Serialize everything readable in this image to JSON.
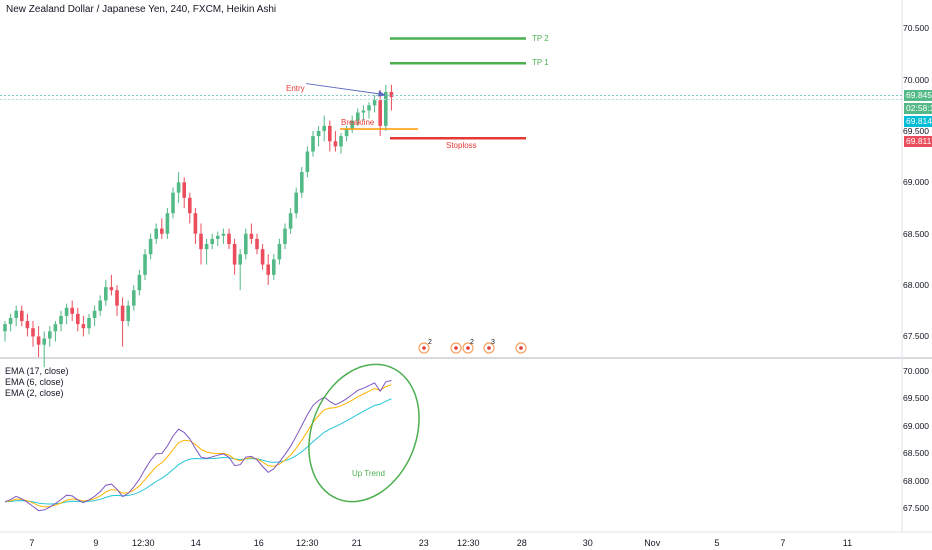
{
  "chart_data": [
    {
      "type": "candlestick",
      "title": "New Zealand Dollar / Japanese Yen, 240, FXCM, Heikin Ashi",
      "y_ticks": [
        "70.500",
        "70.000",
        "69.500",
        "69.000",
        "68.500",
        "68.000",
        "67.500"
      ],
      "ylim": [
        67.3,
        70.6
      ],
      "x_tick_labels": [
        "7",
        "9",
        "12:30",
        "14",
        "16",
        "12:30",
        "21",
        "23",
        "12:30",
        "28",
        "30",
        "Nov",
        "5",
        "7",
        "11"
      ],
      "bull_color": "#53b987",
      "bear_color": "#eb4d5c",
      "candles": [
        [
          67.55,
          67.65,
          67.45,
          67.62
        ],
        [
          67.62,
          67.72,
          67.55,
          67.68
        ],
        [
          67.68,
          67.8,
          67.6,
          67.75
        ],
        [
          67.75,
          67.8,
          67.6,
          67.65
        ],
        [
          67.65,
          67.72,
          67.5,
          67.58
        ],
        [
          67.58,
          67.65,
          67.4,
          67.5
        ],
        [
          67.5,
          67.6,
          67.3,
          67.42
        ],
        [
          67.42,
          67.55,
          67.2,
          67.48
        ],
        [
          67.48,
          67.6,
          67.4,
          67.55
        ],
        [
          67.55,
          67.65,
          67.45,
          67.62
        ],
        [
          67.62,
          67.75,
          67.55,
          67.7
        ],
        [
          67.7,
          67.82,
          67.62,
          67.78
        ],
        [
          67.78,
          67.85,
          67.65,
          67.72
        ],
        [
          67.72,
          67.78,
          67.55,
          67.62
        ],
        [
          67.62,
          67.7,
          67.5,
          67.58
        ],
        [
          67.58,
          67.72,
          67.52,
          67.68
        ],
        [
          67.68,
          67.8,
          67.6,
          67.75
        ],
        [
          67.75,
          67.9,
          67.7,
          67.85
        ],
        [
          67.85,
          68.05,
          67.8,
          67.98
        ],
        [
          67.98,
          68.1,
          67.9,
          67.95
        ],
        [
          67.95,
          68.0,
          67.7,
          67.8
        ],
        [
          67.8,
          67.88,
          67.4,
          67.65
        ],
        [
          67.65,
          67.85,
          67.6,
          67.8
        ],
        [
          67.8,
          68.0,
          67.75,
          67.95
        ],
        [
          67.95,
          68.15,
          67.9,
          68.1
        ],
        [
          68.1,
          68.35,
          68.05,
          68.3
        ],
        [
          68.3,
          68.5,
          68.25,
          68.45
        ],
        [
          68.45,
          68.6,
          68.4,
          68.55
        ],
        [
          68.55,
          68.65,
          68.45,
          68.5
        ],
        [
          68.5,
          68.75,
          68.45,
          68.7
        ],
        [
          68.7,
          68.95,
          68.65,
          68.9
        ],
        [
          68.9,
          69.1,
          68.8,
          69.0
        ],
        [
          69.0,
          69.05,
          68.75,
          68.85
        ],
        [
          68.85,
          68.9,
          68.6,
          68.7
        ],
        [
          68.7,
          68.75,
          68.4,
          68.5
        ],
        [
          68.5,
          68.6,
          68.2,
          68.35
        ],
        [
          68.35,
          68.45,
          68.2,
          68.4
        ],
        [
          68.4,
          68.5,
          68.35,
          68.45
        ],
        [
          68.45,
          68.52,
          68.38,
          68.48
        ],
        [
          68.48,
          68.55,
          68.4,
          68.5
        ],
        [
          68.5,
          68.55,
          68.35,
          68.4
        ],
        [
          68.4,
          68.45,
          68.1,
          68.2
        ],
        [
          68.2,
          68.35,
          67.95,
          68.3
        ],
        [
          68.3,
          68.55,
          68.25,
          68.5
        ],
        [
          68.5,
          68.6,
          68.4,
          68.45
        ],
        [
          68.45,
          68.5,
          68.3,
          68.35
        ],
        [
          68.35,
          68.4,
          68.15,
          68.2
        ],
        [
          68.2,
          68.3,
          68.0,
          68.1
        ],
        [
          68.1,
          68.3,
          68.05,
          68.25
        ],
        [
          68.25,
          68.45,
          68.2,
          68.4
        ],
        [
          68.4,
          68.6,
          68.35,
          68.55
        ],
        [
          68.55,
          68.75,
          68.5,
          68.7
        ],
        [
          68.7,
          68.95,
          68.65,
          68.9
        ],
        [
          68.9,
          69.15,
          68.85,
          69.1
        ],
        [
          69.1,
          69.35,
          69.05,
          69.3
        ],
        [
          69.3,
          69.5,
          69.25,
          69.45
        ],
        [
          69.45,
          69.55,
          69.35,
          69.5
        ],
        [
          69.5,
          69.65,
          69.4,
          69.55
        ],
        [
          69.55,
          69.6,
          69.3,
          69.4
        ],
        [
          69.4,
          69.5,
          69.3,
          69.35
        ],
        [
          69.35,
          69.48,
          69.28,
          69.45
        ],
        [
          69.45,
          69.55,
          69.4,
          69.52
        ],
        [
          69.52,
          69.65,
          69.48,
          69.6
        ],
        [
          69.6,
          69.72,
          69.55,
          69.68
        ],
        [
          69.68,
          69.75,
          69.6,
          69.7
        ],
        [
          69.7,
          69.78,
          69.62,
          69.75
        ],
        [
          69.75,
          69.85,
          69.68,
          69.8
        ],
        [
          69.8,
          69.9,
          69.45,
          69.55
        ],
        [
          69.55,
          69.95,
          69.5,
          69.88
        ],
        [
          69.88,
          69.95,
          69.7,
          69.83
        ]
      ],
      "levels": [
        {
          "label": "TP 2",
          "price": 70.4,
          "color": "#4caf50"
        },
        {
          "label": "TP 1",
          "price": 70.16,
          "color": "#4caf50"
        },
        {
          "label": "Stoploss",
          "price": 69.43,
          "color": "#e53935"
        }
      ],
      "breakline": {
        "label": "Breakline",
        "price": 69.52,
        "color": "#ff9800"
      },
      "entry": {
        "label": "Entry",
        "price": 69.845
      },
      "price_tags": [
        {
          "value": "69.845",
          "color": "#53b987",
          "price": 69.845
        },
        {
          "value": "02:58:18",
          "color": "#53b987",
          "price": 69.72
        },
        {
          "value": "69.814",
          "color": "#00bcd4",
          "price": 69.59
        },
        {
          "value": "69.811",
          "color": "#eb4d5c",
          "price": 69.4
        }
      ],
      "event_badges": [
        "2",
        "2",
        "3"
      ]
    },
    {
      "type": "line",
      "y_ticks": [
        "70.000",
        "69.500",
        "69.000",
        "68.500",
        "68.000",
        "67.500"
      ],
      "ylim": [
        67.2,
        70.1
      ],
      "series": [
        {
          "name": "EMA (17, close)",
          "color": "#26c6da"
        },
        {
          "name": "EMA (6, close)",
          "color": "#ffb300"
        },
        {
          "name": "EMA (2, close)",
          "color": "#7e57c2"
        }
      ],
      "annotation": "Up Trend",
      "annotation_color": "#4caf50"
    }
  ]
}
